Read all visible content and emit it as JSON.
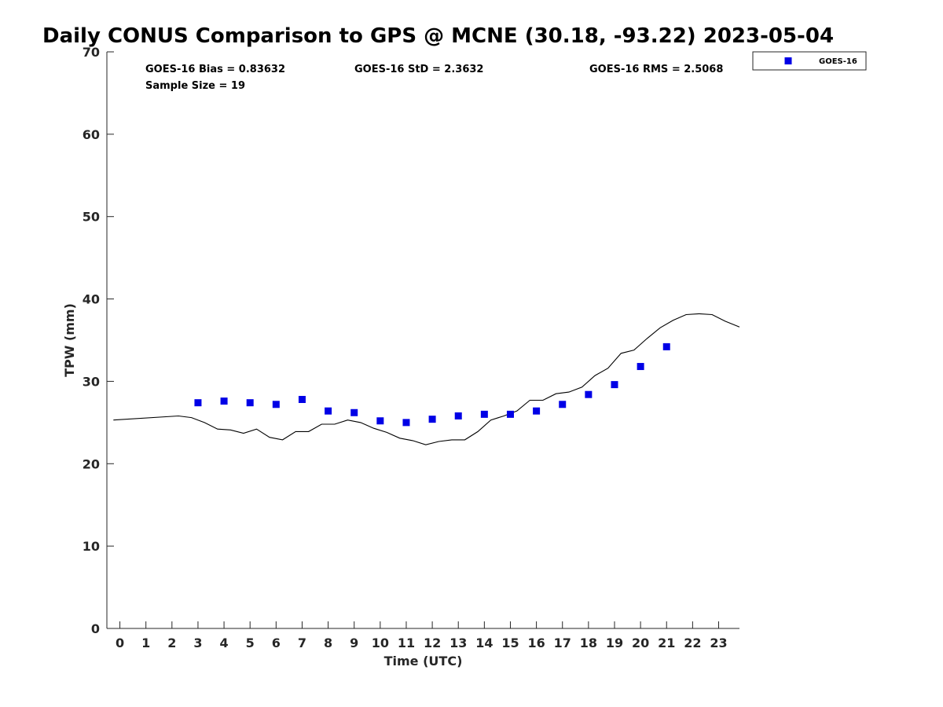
{
  "chart_data": {
    "type": "scatter",
    "title": "Daily CONUS Comparison to GPS @ MCNE (30.18, -93.22) 2023-05-04",
    "xlabel": "Time (UTC)",
    "ylabel": "TPW (mm)",
    "xlim": [
      -0.5,
      23.8
    ],
    "ylim": [
      0,
      70
    ],
    "x_ticks": [
      0,
      1,
      2,
      3,
      4,
      5,
      6,
      7,
      8,
      9,
      10,
      11,
      12,
      13,
      14,
      15,
      16,
      17,
      18,
      19,
      20,
      21,
      22,
      23
    ],
    "y_ticks": [
      0,
      10,
      20,
      30,
      40,
      50,
      60,
      70
    ],
    "x_tick_labels": [
      "0",
      "1",
      "2",
      "3",
      "4",
      "5",
      "6",
      "7",
      "8",
      "9",
      "10",
      "11",
      "12",
      "13",
      "14",
      "15",
      "16",
      "17",
      "18",
      "19",
      "20",
      "21",
      "22",
      "23"
    ],
    "y_tick_labels": [
      "0",
      "10",
      "20",
      "30",
      "40",
      "50",
      "60",
      "70"
    ],
    "stats": {
      "bias": "GOES-16 Bias = 0.83632",
      "std": "GOES-16 StD = 2.3632",
      "rms": "GOES-16 RMS = 2.5068",
      "sample": "Sample Size = 19"
    },
    "legend": {
      "placement": "top-right, outside plot",
      "entries": [
        {
          "label": "GOES-16",
          "color": "#0000e6",
          "marker": "square"
        }
      ]
    },
    "series": [
      {
        "name": "GOES-16",
        "kind": "scatter",
        "color": "#0000e6",
        "points": [
          [
            3,
            27.4
          ],
          [
            4,
            27.6
          ],
          [
            5,
            27.4
          ],
          [
            6,
            27.2
          ],
          [
            7,
            27.8
          ],
          [
            8,
            26.4
          ],
          [
            9,
            26.2
          ],
          [
            10,
            25.2
          ],
          [
            11,
            25.0
          ],
          [
            12,
            25.4
          ],
          [
            13,
            25.8
          ],
          [
            14,
            26.0
          ],
          [
            15,
            26.0
          ],
          [
            16,
            26.4
          ],
          [
            17,
            27.2
          ],
          [
            18,
            28.4
          ],
          [
            19,
            29.6
          ],
          [
            20,
            31.8
          ],
          [
            21,
            34.2
          ]
        ]
      },
      {
        "kind": "line",
        "color": "#000000",
        "points": [
          [
            -0.25,
            25.3
          ],
          [
            2.25,
            25.8
          ],
          [
            2.75,
            25.6
          ],
          [
            3.25,
            25.0
          ],
          [
            3.75,
            24.2
          ],
          [
            4.25,
            24.1
          ],
          [
            4.75,
            23.7
          ],
          [
            5.25,
            24.2
          ],
          [
            5.75,
            23.2
          ],
          [
            6.25,
            22.9
          ],
          [
            6.75,
            23.9
          ],
          [
            7.25,
            23.9
          ],
          [
            7.75,
            24.8
          ],
          [
            8.25,
            24.8
          ],
          [
            8.75,
            25.3
          ],
          [
            9.25,
            25.0
          ],
          [
            9.75,
            24.3
          ],
          [
            10.25,
            23.8
          ],
          [
            10.75,
            23.1
          ],
          [
            11.25,
            22.8
          ],
          [
            11.75,
            22.3
          ],
          [
            12.25,
            22.7
          ],
          [
            12.75,
            22.9
          ],
          [
            13.25,
            22.9
          ],
          [
            13.75,
            23.9
          ],
          [
            14.25,
            25.3
          ],
          [
            14.75,
            25.8
          ],
          [
            15.25,
            26.4
          ],
          [
            15.75,
            27.7
          ],
          [
            16.25,
            27.7
          ],
          [
            16.75,
            28.5
          ],
          [
            17.25,
            28.7
          ],
          [
            17.75,
            29.3
          ],
          [
            18.25,
            30.7
          ],
          [
            18.75,
            31.6
          ],
          [
            19.25,
            33.4
          ],
          [
            19.75,
            33.8
          ],
          [
            20.25,
            35.2
          ],
          [
            20.75,
            36.5
          ],
          [
            21.25,
            37.4
          ],
          [
            21.75,
            38.1
          ],
          [
            22.25,
            38.2
          ],
          [
            22.75,
            38.1
          ],
          [
            23.25,
            37.3
          ],
          [
            23.8,
            36.6
          ]
        ]
      }
    ],
    "grid": false
  }
}
